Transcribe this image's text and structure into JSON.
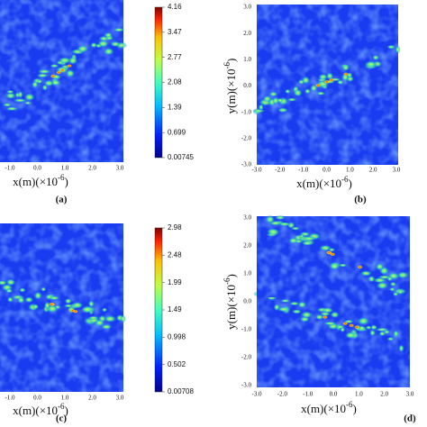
{
  "panels": [
    {
      "caption": "(a)",
      "x_label": {
        "base": "x(m)(×10",
        "exp": "-6",
        "close": ")"
      },
      "x_ticks": [
        "-1.0",
        "0.0",
        "1.0",
        "2.0",
        "3.0"
      ],
      "colorbar": [
        "4.16",
        "3.47",
        "2.77",
        "2.08",
        "1.39",
        "0.699",
        "0.00745"
      ]
    },
    {
      "caption": "(b)",
      "x_label": {
        "base": "x(m)(×10",
        "exp": "-6",
        "close": ")"
      },
      "y_label": {
        "base": "y(m)(×10",
        "exp": "-6",
        "close": ")"
      },
      "x_ticks": [
        "-3.0",
        "-2.0",
        "-1.0",
        "0.0",
        "1.0",
        "2.0",
        "3.0"
      ],
      "y_ticks": [
        "3.0",
        "2.0",
        "1.0",
        "0.0",
        "-1.0",
        "-2.0",
        "-3.0"
      ]
    },
    {
      "caption": "(c)",
      "x_label": {
        "base": "x(m)(×10",
        "exp": "-6",
        "close": ")"
      },
      "x_ticks": [
        "-1.0",
        "0.0",
        "1.0",
        "2.0",
        "3.0"
      ],
      "colorbar": [
        "2.98",
        "2.48",
        "1.99",
        "1.49",
        "0.998",
        "0.502",
        "0.00708"
      ]
    },
    {
      "caption": "(d)",
      "x_label": {
        "base": "x(m)(×10",
        "exp": "-6",
        "close": ")"
      },
      "y_label": {
        "base": "y(m)(×10",
        "exp": "-6",
        "close": ")"
      },
      "x_ticks": [
        "-3.0",
        "-2.0",
        "-1.0",
        "0.0",
        "1.0",
        "2.0",
        "3.0"
      ],
      "y_ticks": [
        "3.0",
        "2.0",
        "1.0",
        "0.0",
        "-1.0",
        "-2.0",
        "-3.0"
      ]
    }
  ]
}
